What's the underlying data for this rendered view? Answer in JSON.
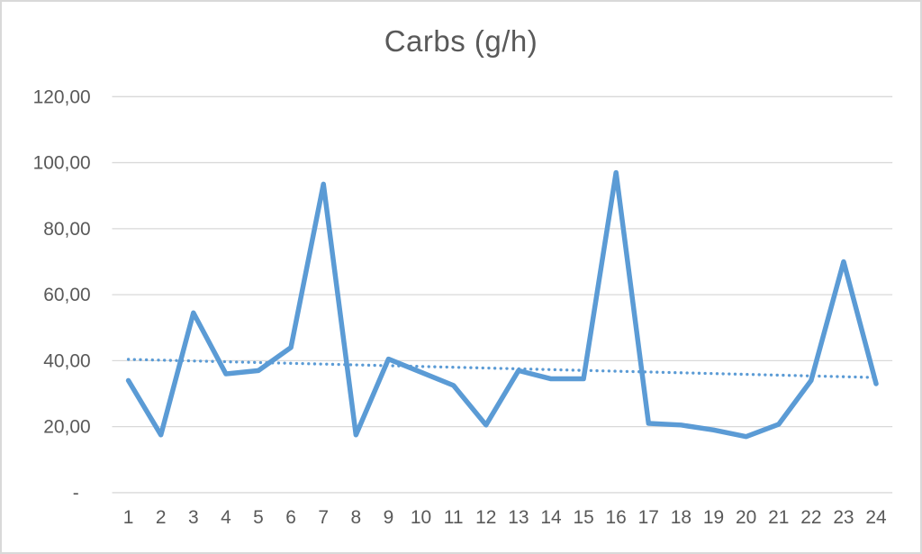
{
  "chart_data": {
    "type": "line",
    "title": "Carbs (g/h)",
    "categories": [
      "1",
      "2",
      "3",
      "4",
      "5",
      "6",
      "7",
      "8",
      "9",
      "10",
      "11",
      "12",
      "13",
      "14",
      "15",
      "16",
      "17",
      "18",
      "19",
      "20",
      "21",
      "22",
      "23",
      "24"
    ],
    "values": [
      34,
      17.5,
      54.5,
      36,
      37,
      44,
      93.5,
      17.5,
      40.5,
      36.5,
      32.5,
      20.5,
      37,
      34.5,
      34.5,
      97,
      21,
      20.5,
      19,
      17,
      20.7,
      34,
      70,
      33
    ],
    "trendline": {
      "type": "linear",
      "style": "dotted",
      "start_value": 40.4,
      "end_value": 34.9
    },
    "xlabel": "",
    "ylabel": "",
    "ylim": [
      0,
      120
    ],
    "yticks": [
      0,
      20,
      40,
      60,
      80,
      100,
      120
    ],
    "ytick_labels": [
      "-",
      "20,00",
      "40,00",
      "60,00",
      "80,00",
      "100,00",
      "120,00"
    ],
    "grid": true,
    "legend_position": "none",
    "decimal_separator": ",",
    "colors": {
      "series_line": "#5b9bd5",
      "trendline": "#5b9bd5",
      "gridline": "#d9d9d9",
      "axis_line": "#d9d9d9",
      "axis_text": "#595959",
      "title_text": "#595959",
      "frame_border": "#d9d9d9",
      "background": "#ffffff"
    }
  }
}
